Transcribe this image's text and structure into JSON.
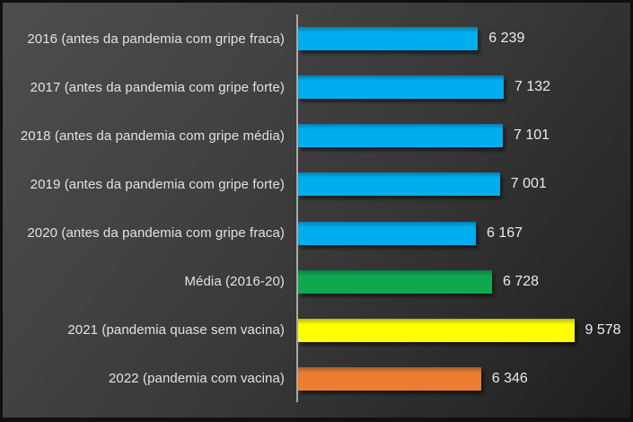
{
  "frame": {
    "border_color": "#101010",
    "background_top_left": "#4d4d4d",
    "background_bottom_right": "#1d1d1d"
  },
  "chart_data": {
    "type": "bar",
    "orientation": "horizontal",
    "title": "",
    "xlabel": "",
    "ylabel": "",
    "categories": [
      "2016 (antes da pandemia com gripe fraca)",
      "2017 (antes da pandemia com gripe forte)",
      "2018 (antes da pandemia com gripe média)",
      "2019 (antes da pandemia com gripe forte)",
      "2020 (antes da pandemia com gripe fraca)",
      "Média (2016-20)",
      "2021 (pandemia quase sem vacina)",
      "2022 (pandemia com vacina)"
    ],
    "values": [
      6239,
      7132,
      7101,
      7001,
      6167,
      6728,
      9578,
      6346
    ],
    "value_labels": [
      "6 239",
      "7 132",
      "7 101",
      "7 001",
      "6 167",
      "6 728",
      "9 578",
      "6 346"
    ],
    "bar_colors": [
      "#00aeef",
      "#00aeef",
      "#00aeef",
      "#00aeef",
      "#00aeef",
      "#10a84e",
      "#ffff00",
      "#ed7d31"
    ],
    "xlim": [
      0,
      11400
    ],
    "grid": false,
    "legend": false,
    "axis_line_color": "#a8a8a8",
    "category_label_color": "#e2e2e2",
    "value_label_color": "#ececec"
  }
}
